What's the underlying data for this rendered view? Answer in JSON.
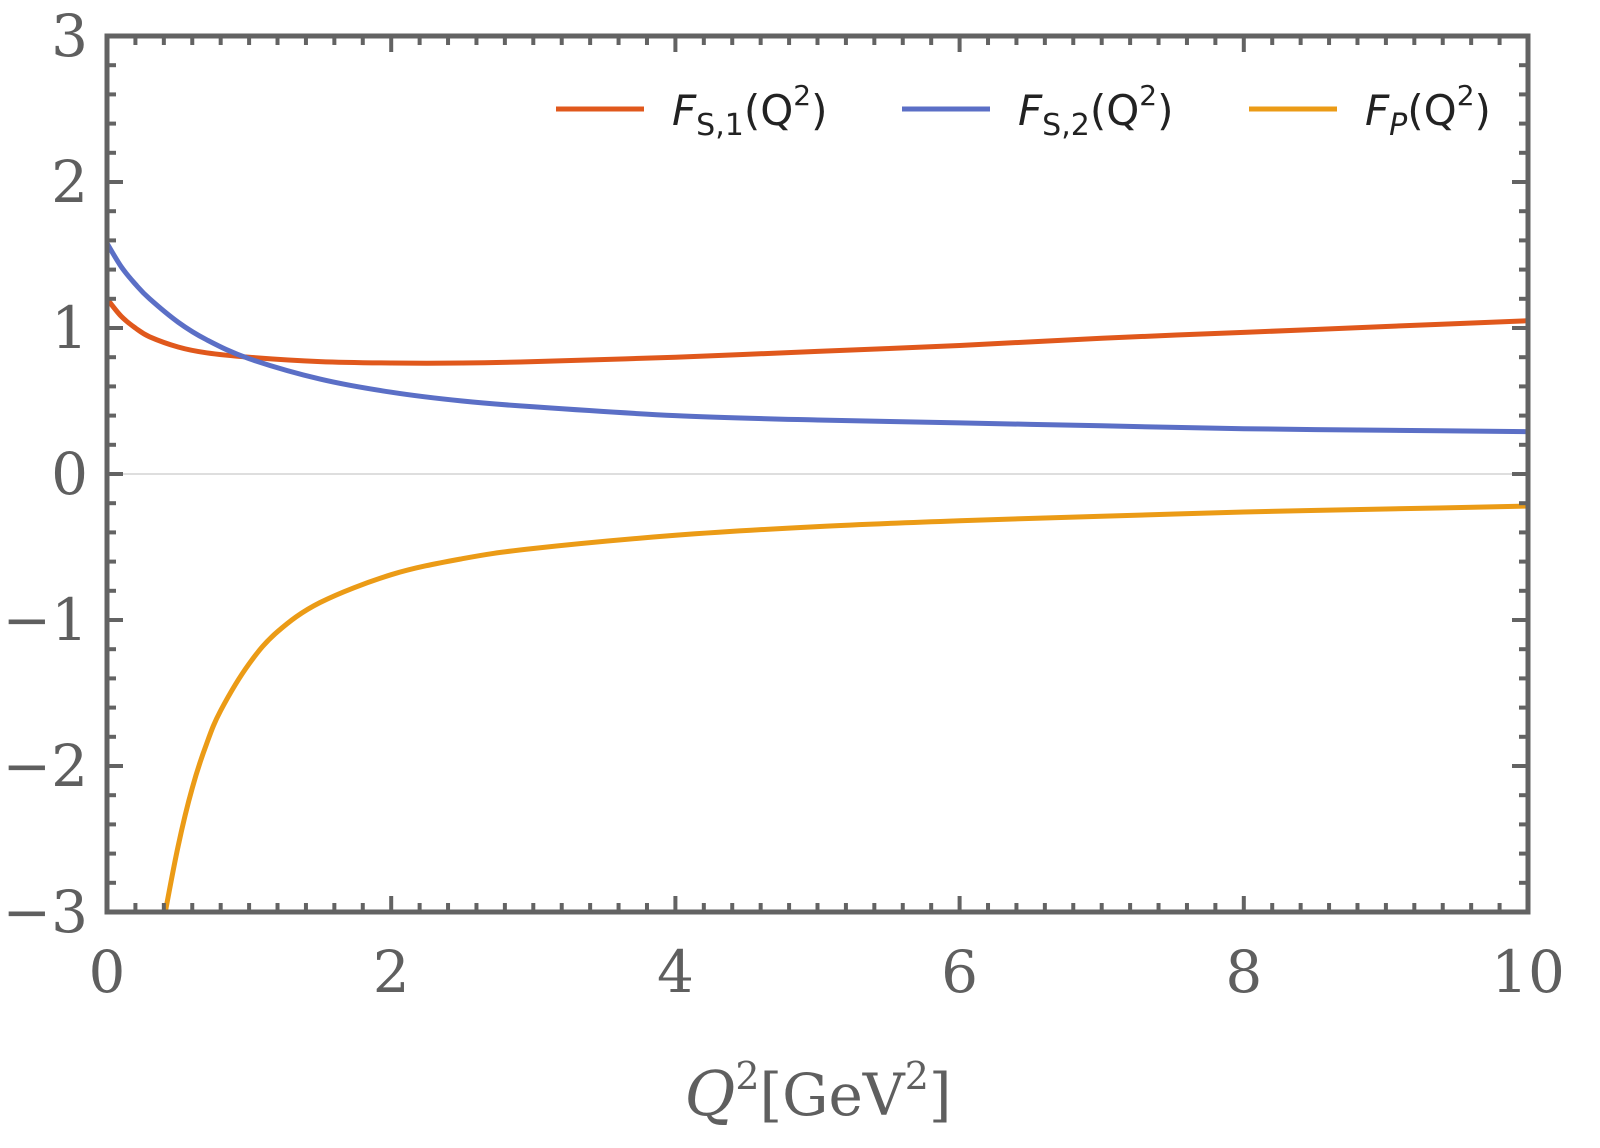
{
  "chart_data": {
    "type": "line",
    "title": "",
    "xlabel": "Q²[GeV²]",
    "ylabel": "",
    "xlim": [
      0,
      10
    ],
    "ylim": [
      -3,
      3
    ],
    "grid": false,
    "legend_position": "top-right",
    "x_ticks": [
      "0",
      "2",
      "4",
      "6",
      "8",
      "10"
    ],
    "y_ticks": [
      "3",
      "2",
      "1",
      "0",
      "−1",
      "−2",
      "−3"
    ],
    "x_tick_values": [
      0,
      2,
      4,
      6,
      8,
      10
    ],
    "y_tick_values": [
      3,
      2,
      1,
      0,
      -1,
      -2,
      -3
    ],
    "xlabel_parts": {
      "main": "Q",
      "sup1": "2",
      "unit": "[GeV",
      "sup2": "2",
      "close": "]"
    },
    "series": [
      {
        "name": "F_{S,1}(Q²)",
        "legend": {
          "main": "F",
          "sub": "S,1",
          "arg": "(Q",
          "sup": "2",
          "close": ")"
        },
        "color": "#e0581c",
        "x": [
          0,
          0.1,
          0.2,
          0.3,
          0.5,
          0.7,
          1.0,
          1.5,
          2.0,
          2.5,
          3.0,
          4.0,
          5.0,
          6.0,
          7.0,
          8.0,
          9.0,
          10.0
        ],
        "y": [
          1.2,
          1.08,
          1.0,
          0.94,
          0.87,
          0.83,
          0.8,
          0.77,
          0.76,
          0.76,
          0.77,
          0.8,
          0.84,
          0.88,
          0.93,
          0.97,
          1.01,
          1.05
        ]
      },
      {
        "name": "F_{S,2}(Q²)",
        "legend": {
          "main": "F",
          "sub": "S,2",
          "arg": "(Q",
          "sup": "2",
          "close": ")"
        },
        "color": "#5b6fc6",
        "x": [
          0,
          0.1,
          0.2,
          0.3,
          0.5,
          0.7,
          1.0,
          1.5,
          2.0,
          2.5,
          3.0,
          4.0,
          5.0,
          6.0,
          7.0,
          8.0,
          9.0,
          10.0
        ],
        "y": [
          1.58,
          1.42,
          1.3,
          1.2,
          1.04,
          0.92,
          0.79,
          0.65,
          0.56,
          0.5,
          0.46,
          0.4,
          0.37,
          0.35,
          0.33,
          0.31,
          0.3,
          0.29
        ]
      },
      {
        "name": "F_P(Q²)",
        "legend": {
          "main": "F",
          "sub": "P",
          "arg": "(Q",
          "sup": "2",
          "close": ")"
        },
        "color": "#eb9b16",
        "x": [
          0.41,
          0.5,
          0.6,
          0.7,
          0.8,
          1.0,
          1.2,
          1.5,
          2.0,
          2.5,
          3.0,
          4.0,
          5.0,
          6.0,
          7.0,
          8.0,
          9.0,
          10.0
        ],
        "y": [
          -3.0,
          -2.55,
          -2.15,
          -1.85,
          -1.62,
          -1.3,
          -1.08,
          -0.88,
          -0.69,
          -0.58,
          -0.51,
          -0.42,
          -0.36,
          -0.32,
          -0.29,
          -0.26,
          -0.24,
          -0.22
        ]
      }
    ]
  }
}
